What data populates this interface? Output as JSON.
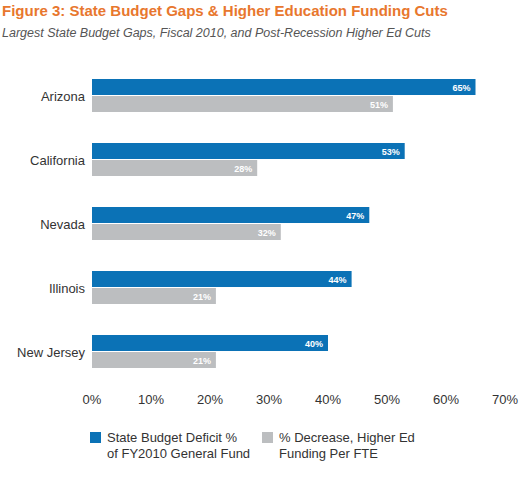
{
  "chart_data": {
    "type": "bar",
    "orientation": "horizontal",
    "title": "Figure 3: State Budget Gaps & Higher Education Funding Cuts",
    "subtitle": "Largest State Budget Gaps, Fiscal 2010, and Post-Recession Higher Ed Cuts",
    "categories": [
      "Arizona",
      "California",
      "Nevada",
      "Illinois",
      "New Jersey"
    ],
    "series": [
      {
        "name": "State Budget Deficit % of FY2010 General Fund",
        "color": "#0b72b6",
        "values": [
          65,
          53,
          47,
          44,
          40
        ],
        "value_labels": [
          "65%",
          "53%",
          "47%",
          "44%",
          "40%"
        ]
      },
      {
        "name": "% Decrease, Higher Ed Funding Per FTE",
        "color": "#bcbec0",
        "values": [
          51,
          28,
          32,
          21,
          21
        ],
        "value_labels": [
          "51%",
          "28%",
          "32%",
          "21%",
          "21%"
        ]
      }
    ],
    "xlim": [
      0,
      70
    ],
    "xticks": [
      {
        "value": 0,
        "label": "0%"
      },
      {
        "value": 10,
        "label": "10%"
      },
      {
        "value": 20,
        "label": "20%"
      },
      {
        "value": 30,
        "label": "30%"
      },
      {
        "value": 40,
        "label": "40%"
      },
      {
        "value": 50,
        "label": "50%"
      },
      {
        "value": 60,
        "label": "60%"
      },
      {
        "value": 70,
        "label": "70%"
      }
    ],
    "grid": false,
    "data_labels": true,
    "legend": "bottom"
  }
}
